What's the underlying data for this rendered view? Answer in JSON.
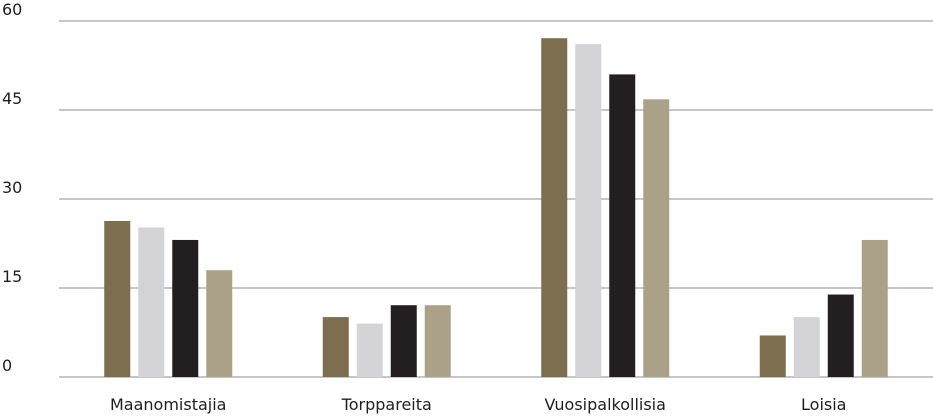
{
  "chart_data": {
    "type": "bar",
    "title": "",
    "xlabel": "",
    "ylabel": "",
    "categories": [
      "Maanomistajia",
      "Torppareita",
      "Vuosipalkollisia",
      "Loisia"
    ],
    "series": [
      {
        "color": "#7d6e4f",
        "values": [
          26.3,
          10.1,
          57.1,
          7.0
        ]
      },
      {
        "color": "#d4d4d6",
        "values": [
          25.2,
          9.0,
          56.1,
          10.1
        ]
      },
      {
        "color": "#231f20",
        "values": [
          23.1,
          12.1,
          51.0,
          13.9
        ]
      },
      {
        "color": "#aba088",
        "values": [
          18.0,
          12.1,
          46.8,
          23.1
        ]
      }
    ],
    "ylim": [
      0,
      60
    ],
    "yticks": [
      "0",
      "15",
      "30",
      "45",
      "60"
    ],
    "grid": true
  }
}
